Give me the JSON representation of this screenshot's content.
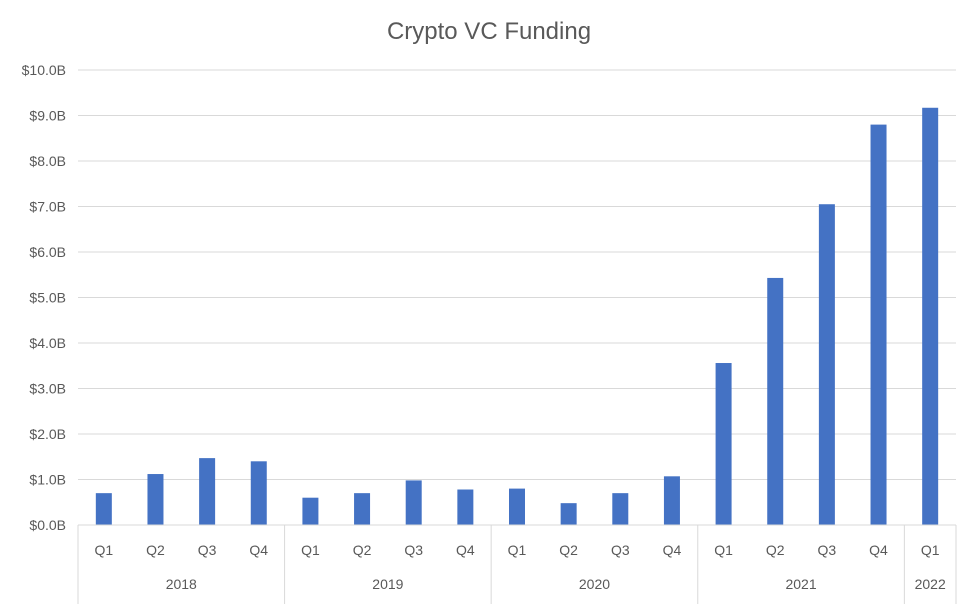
{
  "chart_data": {
    "type": "bar",
    "title": "Crypto VC Funding",
    "xlabel": "",
    "ylabel": "",
    "ylim": [
      0,
      10
    ],
    "y_ticks": [
      "$0.0B",
      "$1.0B",
      "$2.0B",
      "$3.0B",
      "$4.0B",
      "$5.0B",
      "$6.0B",
      "$7.0B",
      "$8.0B",
      "$9.0B",
      "$10.0B"
    ],
    "grid": true,
    "legend": "none",
    "bar_color": "#4472C4",
    "grid_color": "#D9D9D9",
    "categories": [
      "Q1",
      "Q2",
      "Q3",
      "Q4",
      "Q1",
      "Q2",
      "Q3",
      "Q4",
      "Q1",
      "Q2",
      "Q3",
      "Q4",
      "Q1",
      "Q2",
      "Q3",
      "Q4",
      "Q1"
    ],
    "groups": [
      {
        "label": "2018",
        "count": 4
      },
      {
        "label": "2019",
        "count": 4
      },
      {
        "label": "2020",
        "count": 4
      },
      {
        "label": "2021",
        "count": 4
      },
      {
        "label": "2022",
        "count": 1
      }
    ],
    "values": [
      0.7,
      1.12,
      1.47,
      1.4,
      0.6,
      0.7,
      0.98,
      0.78,
      0.8,
      0.48,
      0.7,
      1.07,
      3.56,
      5.43,
      7.05,
      8.8,
      9.17
    ]
  }
}
